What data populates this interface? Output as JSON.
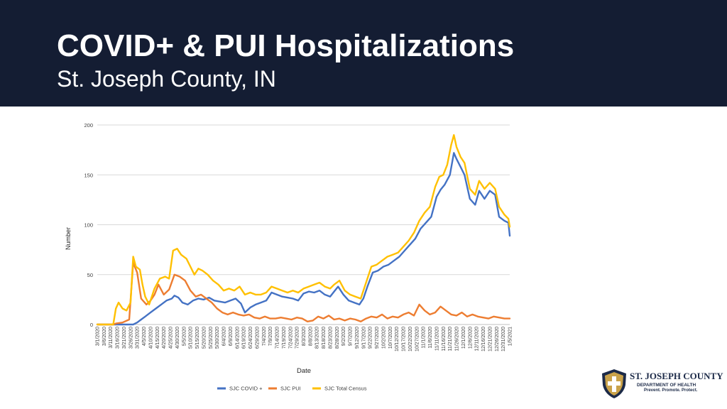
{
  "header": {
    "title": "COVID+ & PUI Hospitalizations",
    "subtitle": "St. Joseph County, IN"
  },
  "logo": {
    "name": "ST. JOSEPH COUNTY",
    "department": "DEPARTMENT OF HEALTH",
    "tagline": "Prevent. Promote. Protect.",
    "icon": "shield-cross-icon"
  },
  "chart_data": {
    "type": "line",
    "xlabel": "Date",
    "ylabel": "Number",
    "ylim": [
      0,
      200
    ],
    "yticks": [
      0,
      50,
      100,
      150,
      200
    ],
    "grid": "horizontal",
    "legend": "bottom",
    "x_start": "3/1/2020",
    "x_end": "1/5/2021",
    "x_tick_labels": [
      "3/1/2020",
      "3/6/2020",
      "3/11/2020",
      "3/16/2020",
      "3/21/2020",
      "3/26/2020",
      "3/31/2020",
      "4/5/2020",
      "4/10/2020",
      "4/15/2020",
      "4/20/2020",
      "4/25/2020",
      "4/30/2020",
      "5/5/2020",
      "5/10/2020",
      "5/15/2020",
      "5/20/2020",
      "5/25/2020",
      "5/30/2020",
      "6/4/2020",
      "6/9/2020",
      "6/14/2020",
      "6/19/2020",
      "6/24/2020",
      "6/29/2020",
      "7/4/2020",
      "7/9/2020",
      "7/14/2020",
      "7/19/2020",
      "7/24/2020",
      "7/29/2020",
      "8/3/2020",
      "8/8/2020",
      "8/13/2020",
      "8/18/2020",
      "8/23/2020",
      "8/28/2020",
      "9/2/2020",
      "9/7/2020",
      "9/12/2020",
      "9/17/2020",
      "9/22/2020",
      "9/27/2020",
      "10/2/2020",
      "10/7/2020",
      "10/12/2020",
      "10/17/2020",
      "10/22/2020",
      "10/27/2020",
      "11/1/2020",
      "11/6/2020",
      "11/11/2020",
      "11/16/2020",
      "11/21/2020",
      "11/26/2020",
      "12/1/2020",
      "12/6/2020",
      "12/11/2020",
      "12/16/2020",
      "12/21/2020",
      "12/26/2020",
      "12/31/2020",
      "1/5/2021"
    ],
    "series": [
      {
        "name": "SJC COVID +",
        "color": "#4472c4",
        "points": [
          [
            "3/1/2020",
            0
          ],
          [
            "3/10/2020",
            0
          ],
          [
            "3/20/2020",
            0
          ],
          [
            "3/28/2020",
            0
          ],
          [
            "3/31/2020",
            2
          ],
          [
            "4/3/2020",
            5
          ],
          [
            "4/6/2020",
            8
          ],
          [
            "4/10/2020",
            12
          ],
          [
            "4/14/2020",
            16
          ],
          [
            "4/18/2020",
            20
          ],
          [
            "4/22/2020",
            24
          ],
          [
            "4/26/2020",
            26
          ],
          [
            "4/28/2020",
            29
          ],
          [
            "5/1/2020",
            27
          ],
          [
            "5/4/2020",
            22
          ],
          [
            "5/8/2020",
            20
          ],
          [
            "5/12/2020",
            24
          ],
          [
            "5/16/2020",
            26
          ],
          [
            "5/20/2020",
            25
          ],
          [
            "5/24/2020",
            27
          ],
          [
            "5/28/2020",
            24
          ],
          [
            "6/1/2020",
            23
          ],
          [
            "6/5/2020",
            22
          ],
          [
            "6/9/2020",
            24
          ],
          [
            "6/13/2020",
            26
          ],
          [
            "6/17/2020",
            21
          ],
          [
            "6/20/2020",
            12
          ],
          [
            "6/24/2020",
            17
          ],
          [
            "6/28/2020",
            20
          ],
          [
            "7/2/2020",
            22
          ],
          [
            "7/6/2020",
            24
          ],
          [
            "7/10/2020",
            32
          ],
          [
            "7/14/2020",
            30
          ],
          [
            "7/18/2020",
            28
          ],
          [
            "7/22/2020",
            27
          ],
          [
            "7/26/2020",
            26
          ],
          [
            "7/30/2020",
            24
          ],
          [
            "8/3/2020",
            31
          ],
          [
            "8/7/2020",
            33
          ],
          [
            "8/11/2020",
            32
          ],
          [
            "8/15/2020",
            34
          ],
          [
            "8/19/2020",
            30
          ],
          [
            "8/23/2020",
            28
          ],
          [
            "8/26/2020",
            33
          ],
          [
            "8/29/2020",
            38
          ],
          [
            "9/2/2020",
            30
          ],
          [
            "9/6/2020",
            24
          ],
          [
            "9/10/2020",
            22
          ],
          [
            "9/14/2020",
            20
          ],
          [
            "9/17/2020",
            26
          ],
          [
            "9/20/2020",
            38
          ],
          [
            "9/24/2020",
            52
          ],
          [
            "9/28/2020",
            54
          ],
          [
            "10/2/2020",
            58
          ],
          [
            "10/6/2020",
            60
          ],
          [
            "10/10/2020",
            64
          ],
          [
            "10/14/2020",
            68
          ],
          [
            "10/18/2020",
            74
          ],
          [
            "10/22/2020",
            80
          ],
          [
            "10/26/2020",
            86
          ],
          [
            "10/30/2020",
            96
          ],
          [
            "11/3/2020",
            102
          ],
          [
            "11/7/2020",
            108
          ],
          [
            "11/11/2020",
            128
          ],
          [
            "11/14/2020",
            135
          ],
          [
            "11/17/2020",
            140
          ],
          [
            "11/21/2020",
            150
          ],
          [
            "11/24/2020",
            172
          ],
          [
            "11/26/2020",
            166
          ],
          [
            "11/29/2020",
            158
          ],
          [
            "12/2/2020",
            150
          ],
          [
            "12/6/2020",
            126
          ],
          [
            "12/10/2020",
            120
          ],
          [
            "12/13/2020",
            134
          ],
          [
            "12/17/2020",
            126
          ],
          [
            "12/21/2020",
            134
          ],
          [
            "12/25/2020",
            130
          ],
          [
            "12/28/2020",
            108
          ],
          [
            "1/1/2021",
            104
          ],
          [
            "1/4/2021",
            102
          ],
          [
            "1/5/2021",
            89
          ]
        ]
      },
      {
        "name": "SJC PUI",
        "color": "#ed7d31",
        "points": [
          [
            "3/1/2020",
            0
          ],
          [
            "3/10/2020",
            0
          ],
          [
            "3/13/2020",
            0
          ],
          [
            "3/15/2020",
            1
          ],
          [
            "3/20/2020",
            2
          ],
          [
            "3/25/2020",
            5
          ],
          [
            "3/28/2020",
            62
          ],
          [
            "3/31/2020",
            52
          ],
          [
            "4/3/2020",
            26
          ],
          [
            "4/7/2020",
            20
          ],
          [
            "4/10/2020",
            24
          ],
          [
            "4/13/2020",
            30
          ],
          [
            "4/16/2020",
            40
          ],
          [
            "4/20/2020",
            30
          ],
          [
            "4/24/2020",
            35
          ],
          [
            "4/28/2020",
            50
          ],
          [
            "5/2/2020",
            48
          ],
          [
            "5/6/2020",
            44
          ],
          [
            "5/10/2020",
            34
          ],
          [
            "5/14/2020",
            28
          ],
          [
            "5/18/2020",
            30
          ],
          [
            "5/22/2020",
            26
          ],
          [
            "5/26/2020",
            22
          ],
          [
            "5/30/2020",
            16
          ],
          [
            "6/3/2020",
            12
          ],
          [
            "6/7/2020",
            10
          ],
          [
            "6/11/2020",
            12
          ],
          [
            "6/15/2020",
            10
          ],
          [
            "6/19/2020",
            9
          ],
          [
            "6/23/2020",
            10
          ],
          [
            "6/27/2020",
            7
          ],
          [
            "7/1/2020",
            6
          ],
          [
            "7/5/2020",
            8
          ],
          [
            "7/9/2020",
            6
          ],
          [
            "7/13/2020",
            6
          ],
          [
            "7/17/2020",
            7
          ],
          [
            "7/21/2020",
            6
          ],
          [
            "7/25/2020",
            5
          ],
          [
            "7/29/2020",
            7
          ],
          [
            "8/2/2020",
            6
          ],
          [
            "8/6/2020",
            3
          ],
          [
            "8/10/2020",
            4
          ],
          [
            "8/14/2020",
            8
          ],
          [
            "8/18/2020",
            6
          ],
          [
            "8/22/2020",
            9
          ],
          [
            "8/26/2020",
            5
          ],
          [
            "8/30/2020",
            6
          ],
          [
            "9/3/2020",
            4
          ],
          [
            "9/7/2020",
            6
          ],
          [
            "9/11/2020",
            5
          ],
          [
            "9/15/2020",
            3
          ],
          [
            "9/19/2020",
            6
          ],
          [
            "9/23/2020",
            8
          ],
          [
            "9/27/2020",
            7
          ],
          [
            "10/1/2020",
            10
          ],
          [
            "10/5/2020",
            6
          ],
          [
            "10/9/2020",
            8
          ],
          [
            "10/13/2020",
            7
          ],
          [
            "10/17/2020",
            10
          ],
          [
            "10/21/2020",
            12
          ],
          [
            "10/25/2020",
            9
          ],
          [
            "10/29/2020",
            20
          ],
          [
            "11/2/2020",
            14
          ],
          [
            "11/6/2020",
            10
          ],
          [
            "11/10/2020",
            12
          ],
          [
            "11/14/2020",
            18
          ],
          [
            "11/18/2020",
            14
          ],
          [
            "11/22/2020",
            10
          ],
          [
            "11/26/2020",
            9
          ],
          [
            "11/30/2020",
            12
          ],
          [
            "12/4/2020",
            8
          ],
          [
            "12/8/2020",
            10
          ],
          [
            "12/12/2020",
            8
          ],
          [
            "12/16/2020",
            7
          ],
          [
            "12/20/2020",
            6
          ],
          [
            "12/24/2020",
            8
          ],
          [
            "12/28/2020",
            7
          ],
          [
            "1/1/2021",
            6
          ],
          [
            "1/5/2021",
            6
          ]
        ]
      },
      {
        "name": "SJC Total Census",
        "color": "#ffc000",
        "points": [
          [
            "3/1/2020",
            0
          ],
          [
            "3/10/2020",
            0
          ],
          [
            "3/13/2020",
            0
          ],
          [
            "3/15/2020",
            16
          ],
          [
            "3/17/2020",
            22
          ],
          [
            "3/20/2020",
            16
          ],
          [
            "3/23/2020",
            14
          ],
          [
            "3/26/2020",
            22
          ],
          [
            "3/28/2020",
            68
          ],
          [
            "3/30/2020",
            58
          ],
          [
            "4/2/2020",
            55
          ],
          [
            "4/4/2020",
            40
          ],
          [
            "4/6/2020",
            28
          ],
          [
            "4/9/2020",
            20
          ],
          [
            "4/13/2020",
            36
          ],
          [
            "4/17/2020",
            46
          ],
          [
            "4/21/2020",
            48
          ],
          [
            "4/24/2020",
            46
          ],
          [
            "4/27/2020",
            74
          ],
          [
            "4/30/2020",
            76
          ],
          [
            "5/3/2020",
            70
          ],
          [
            "5/7/2020",
            66
          ],
          [
            "5/10/2020",
            58
          ],
          [
            "5/13/2020",
            50
          ],
          [
            "5/16/2020",
            56
          ],
          [
            "5/19/2020",
            54
          ],
          [
            "5/23/2020",
            50
          ],
          [
            "5/27/2020",
            44
          ],
          [
            "5/31/2020",
            40
          ],
          [
            "6/4/2020",
            34
          ],
          [
            "6/8/2020",
            36
          ],
          [
            "6/12/2020",
            34
          ],
          [
            "6/16/2020",
            38
          ],
          [
            "6/20/2020",
            30
          ],
          [
            "6/24/2020",
            32
          ],
          [
            "6/28/2020",
            30
          ],
          [
            "7/2/2020",
            30
          ],
          [
            "7/6/2020",
            32
          ],
          [
            "7/10/2020",
            38
          ],
          [
            "7/14/2020",
            36
          ],
          [
            "7/18/2020",
            34
          ],
          [
            "7/22/2020",
            32
          ],
          [
            "7/26/2020",
            34
          ],
          [
            "7/30/2020",
            32
          ],
          [
            "8/3/2020",
            36
          ],
          [
            "8/7/2020",
            38
          ],
          [
            "8/11/2020",
            40
          ],
          [
            "8/15/2020",
            42
          ],
          [
            "8/19/2020",
            38
          ],
          [
            "8/23/2020",
            36
          ],
          [
            "8/26/2020",
            40
          ],
          [
            "8/30/2020",
            44
          ],
          [
            "9/3/2020",
            34
          ],
          [
            "9/7/2020",
            30
          ],
          [
            "9/11/2020",
            28
          ],
          [
            "9/15/2020",
            26
          ],
          [
            "9/19/2020",
            42
          ],
          [
            "9/23/2020",
            58
          ],
          [
            "9/27/2020",
            60
          ],
          [
            "10/1/2020",
            64
          ],
          [
            "10/5/2020",
            68
          ],
          [
            "10/9/2020",
            70
          ],
          [
            "10/13/2020",
            72
          ],
          [
            "10/17/2020",
            78
          ],
          [
            "10/21/2020",
            84
          ],
          [
            "10/25/2020",
            92
          ],
          [
            "10/29/2020",
            104
          ],
          [
            "11/2/2020",
            112
          ],
          [
            "11/6/2020",
            118
          ],
          [
            "11/10/2020",
            138
          ],
          [
            "11/13/2020",
            148
          ],
          [
            "11/16/2020",
            150
          ],
          [
            "11/19/2020",
            160
          ],
          [
            "11/22/2020",
            180
          ],
          [
            "11/24/2020",
            190
          ],
          [
            "11/26/2020",
            178
          ],
          [
            "11/29/2020",
            168
          ],
          [
            "12/2/2020",
            162
          ],
          [
            "12/6/2020",
            136
          ],
          [
            "12/10/2020",
            130
          ],
          [
            "12/13/2020",
            144
          ],
          [
            "12/17/2020",
            136
          ],
          [
            "12/21/2020",
            142
          ],
          [
            "12/25/2020",
            136
          ],
          [
            "12/28/2020",
            118
          ],
          [
            "1/1/2021",
            110
          ],
          [
            "1/4/2021",
            106
          ],
          [
            "1/5/2021",
            98
          ]
        ]
      }
    ]
  }
}
